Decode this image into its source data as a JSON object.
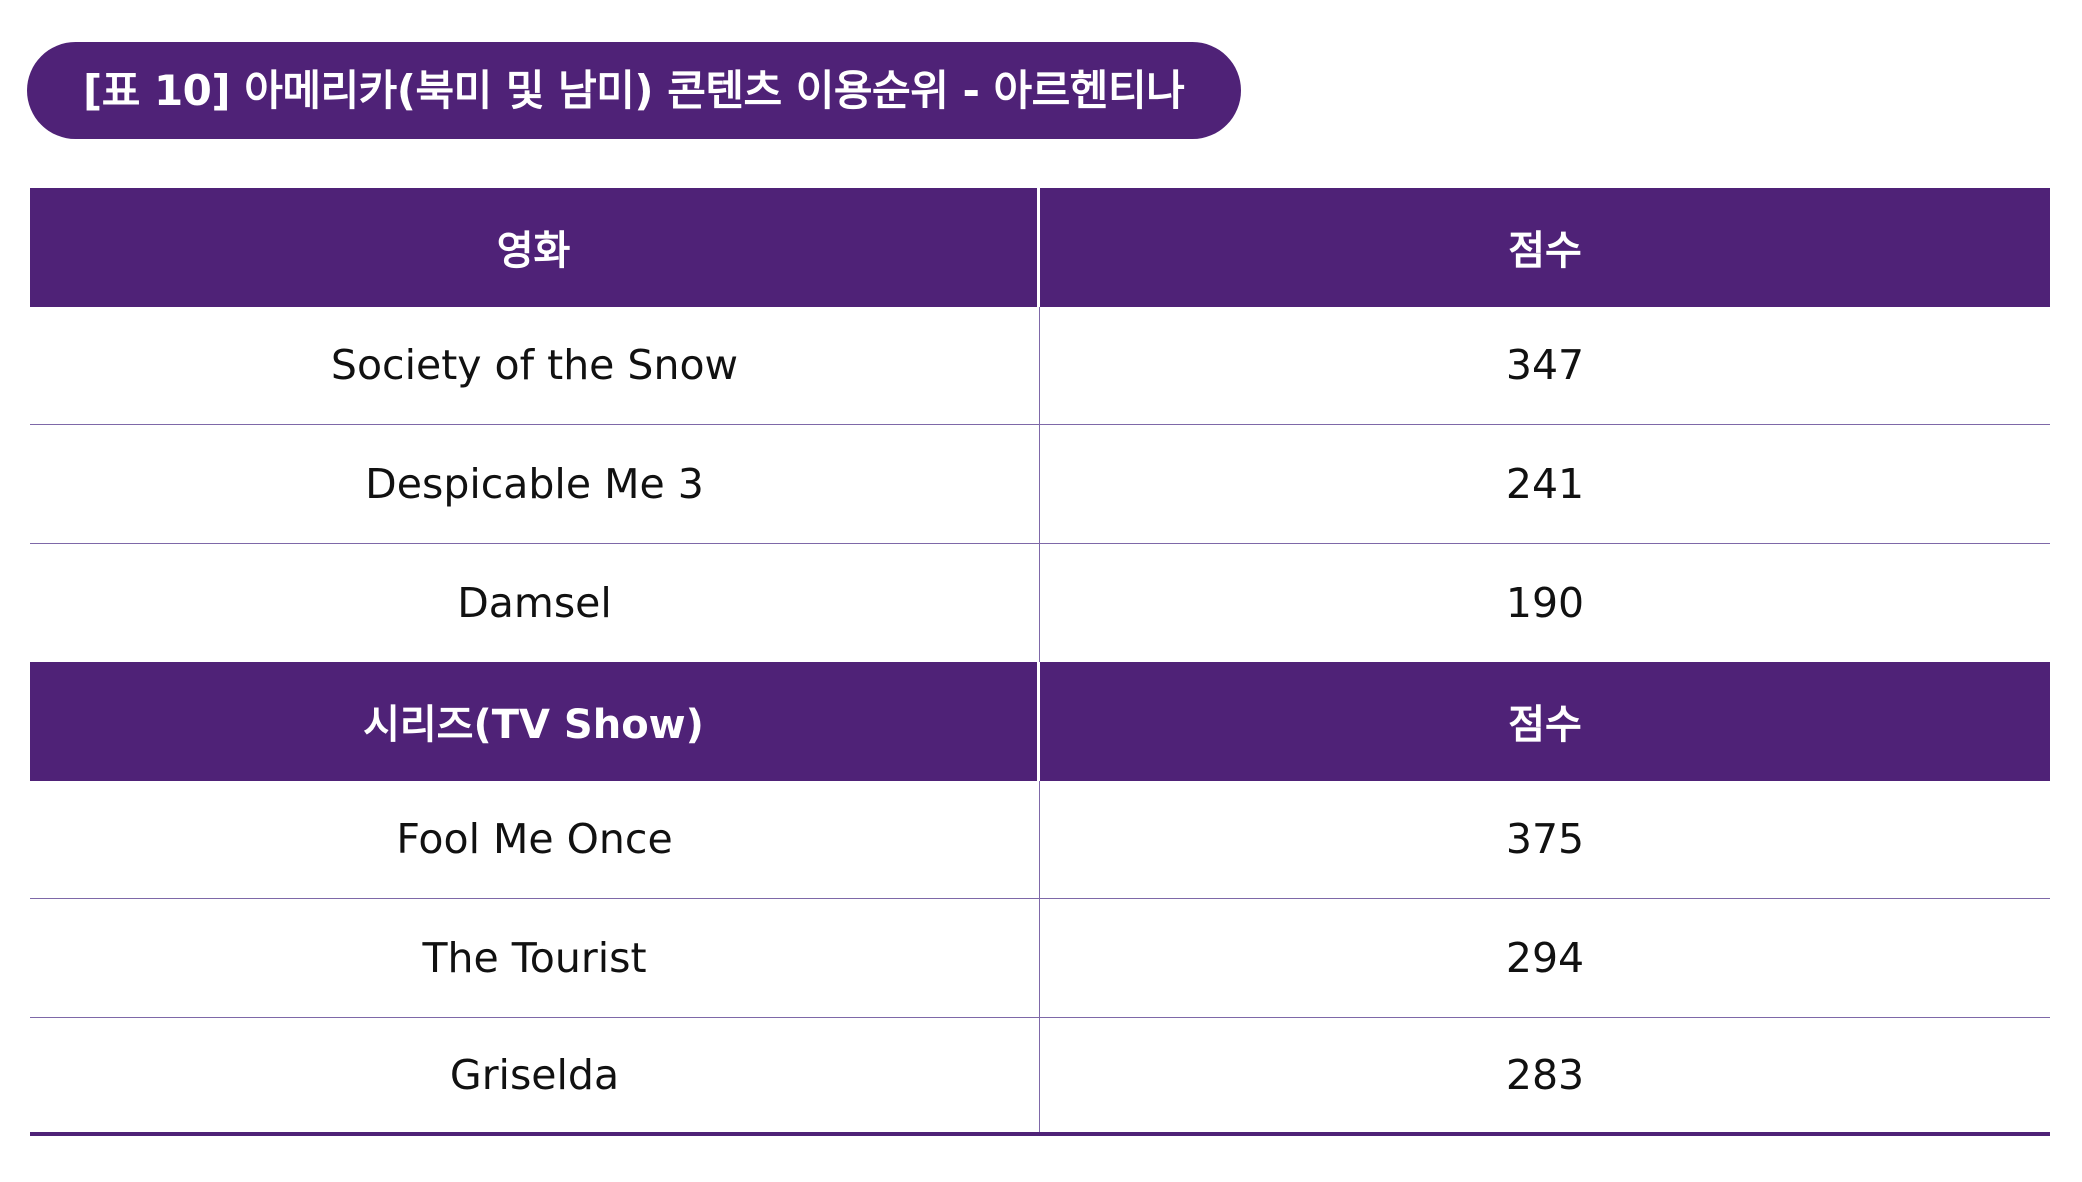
{
  "title": "[표 10] 아메리카(북미 및 남미) 콘텐츠 이용순위 - 아르헨티나",
  "movies": {
    "header": {
      "name": "영화",
      "score": "점수"
    },
    "rows": [
      {
        "name": "Society of the Snow",
        "score": "347"
      },
      {
        "name": "Despicable Me 3",
        "score": "241"
      },
      {
        "name": "Damsel",
        "score": "190"
      }
    ]
  },
  "series": {
    "header": {
      "name": "시리즈(TV Show)",
      "score": "점수"
    },
    "rows": [
      {
        "name": "Fool Me Once",
        "score": "375"
      },
      {
        "name": "The Tourist",
        "score": "294"
      },
      {
        "name": "Griselda",
        "score": "283"
      }
    ]
  },
  "colors": {
    "accent": "#4f2277",
    "divider": "#7e68a8",
    "text": "#111111"
  }
}
